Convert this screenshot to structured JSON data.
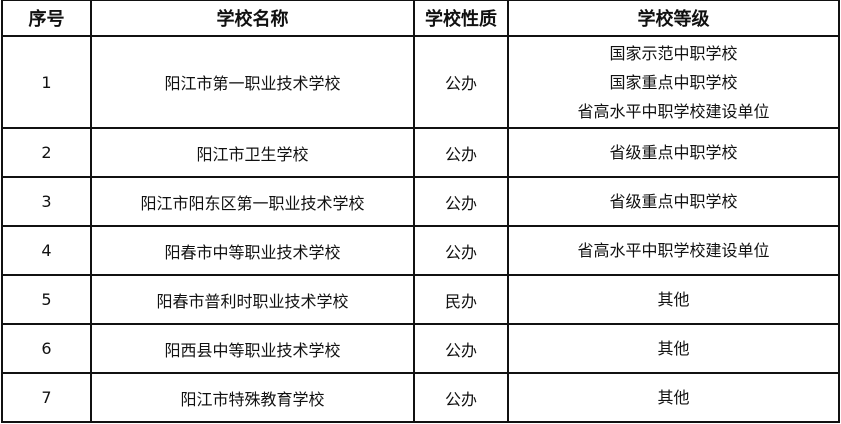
{
  "headers": [
    "序号",
    "学校名称",
    "学校性质",
    "学校等级"
  ],
  "rows": [
    {
      "no": "1",
      "name": "阳江市第一职业技术学校",
      "type": "公办",
      "levels": [
        "国家示范中职学校",
        "国家重点中职学校",
        "省高水平中职学校建设单位"
      ]
    },
    {
      "no": "2",
      "name": "阳江市卫生学校",
      "type": "公办",
      "levels": [
        "省级重点中职学校"
      ]
    },
    {
      "no": "3",
      "name": "阳江市阳东区第一职业技术学校",
      "type": "公办",
      "levels": [
        "省级重点中职学校"
      ]
    },
    {
      "no": "4",
      "name": "阳春市中等职业技术学校",
      "type": "公办",
      "levels": [
        "省高水平中职学校建设单位"
      ]
    },
    {
      "no": "5",
      "name": "阳春市普利时职业技术学校",
      "type": "民办",
      "levels": [
        "其他"
      ]
    },
    {
      "no": "6",
      "name": "阳西县中等职业技术学校",
      "type": "公办",
      "levels": [
        "其他"
      ]
    },
    {
      "no": "7",
      "name": "阳江市特殊教育学校",
      "type": "公办",
      "levels": [
        "其他"
      ]
    }
  ]
}
